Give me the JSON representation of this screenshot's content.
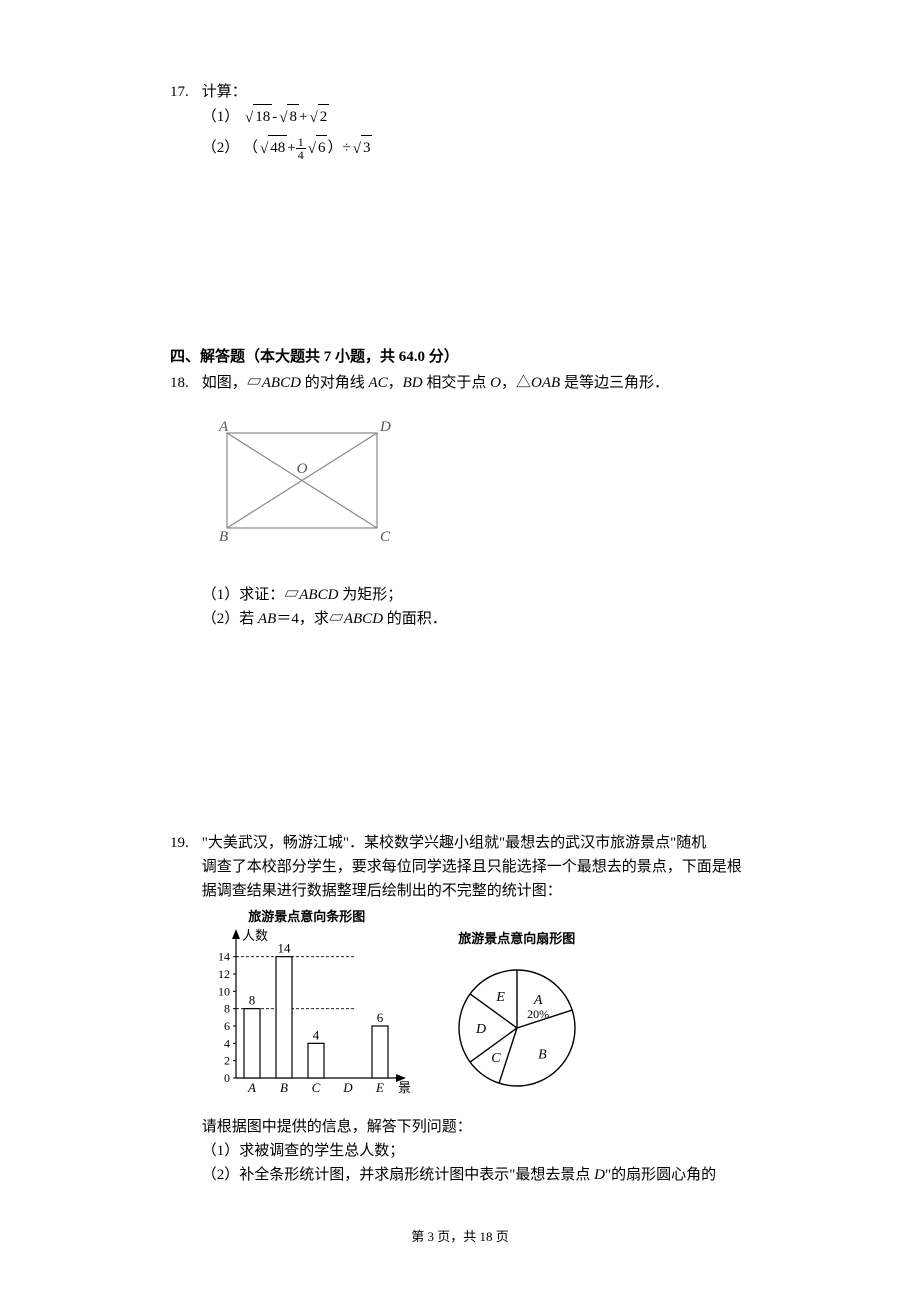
{
  "q17": {
    "num": "17.",
    "stem": "计算：",
    "part1_label": "（1）",
    "part1_a": "18",
    "part1_b": "8",
    "part1_c": "2",
    "part2_label": "（2）",
    "part2_a": "48",
    "part2_frac_num": "1",
    "part2_frac_den": "4",
    "part2_b": "6",
    "part2_c": "3"
  },
  "section4": "四、解答题（本大题共 7 小题，共 64.0 分）",
  "q18": {
    "num": "18.",
    "stem_a": "如图，▱",
    "stem_b": " 的对角线 ",
    "stem_c": "，",
    "stem_d": " 相交于点 ",
    "stem_e": "，△",
    "stem_f": " 是等边三角形．",
    "ABCD": "ABCD",
    "AC": "AC",
    "BD": "BD",
    "O": "O",
    "OAB": "OAB",
    "p1_label": "（1）求证：▱",
    "p1_tail": " 为矩形；",
    "p2_label": "（2）若 ",
    "AB": "AB",
    "eq4": "＝4，求▱",
    "p2_tail": " 的面积．",
    "fig": {
      "A": "A",
      "B": "B",
      "C": "C",
      "D": "D",
      "Olabel": "O",
      "stroke": "#888888"
    }
  },
  "q19": {
    "num": "19.",
    "line1": "\"大美武汉，畅游江城\"．某校数学兴趣小组就\"最想去的武汉市旅游景点\"随机",
    "line2": "调查了本校部分学生，要求每位同学选择且只能选择一个最想去的景点，下面是根",
    "line3": "据调查结果进行数据整理后绘制出的不完整的统计图：",
    "bar_title": "旅游景点意向条形图",
    "pie_title": "旅游景点意向扇形图",
    "ylabel": "人数",
    "xlabel": "景点",
    "bar": {
      "type": "bar",
      "categories": [
        "A",
        "B",
        "C",
        "D",
        "E"
      ],
      "values": [
        8,
        14,
        4,
        null,
        6
      ],
      "value_labels": [
        "8",
        "14",
        "4",
        "",
        "6"
      ],
      "yticks": [
        0,
        2,
        4,
        6,
        8,
        10,
        12,
        14
      ],
      "ylim": [
        0,
        15
      ],
      "bar_outline": "#000000",
      "bar_fill": "#ffffff",
      "axis_color": "#000000",
      "guide_dash": "3,2"
    },
    "pie": {
      "type": "pie",
      "labels": [
        "A",
        "B",
        "C",
        "D",
        "E"
      ],
      "A_pct_label": "20%",
      "angles_deg": {
        "A_start": -90,
        "A_end": -18,
        "B_end": 108,
        "C_end": 144,
        "D_end": 216,
        "E_end": 270
      },
      "stroke": "#000000",
      "fill": "#ffffff",
      "radius": 58
    },
    "after1": "请根据图中提供的信息，解答下列问题：",
    "p1": "（1）求被调查的学生总人数；",
    "p2a": "（2）补全条形统计图，并求扇形统计图中表示\"最想去景点 ",
    "p2_D": "D",
    "p2b": "\"的扇形圆心角的"
  },
  "footer": {
    "text_a": "第 ",
    "page": "3",
    "text_b": " 页，共 ",
    "total": "18",
    "text_c": " 页"
  }
}
